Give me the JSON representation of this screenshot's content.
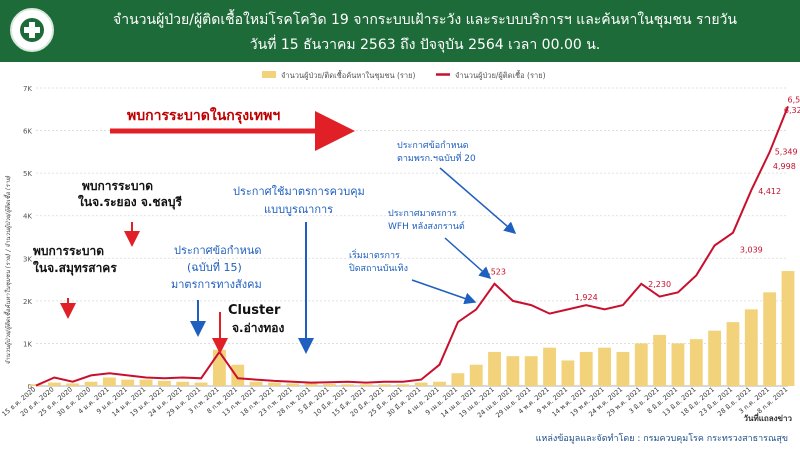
{
  "header": {
    "title_line1": "จำนวนผู้ป่วย/ผู้ติดเชื้อใหม่โรคโควิด 19 จากระบบเฝ้าระวัง และระบบบริการฯ และค้นหาในชุมชน รายวัน",
    "title_line2": "วันที่ 15 ธันวาคม 2563 ถึง ปัจจุบัน 2564 เวลา 00.00 น."
  },
  "footer": {
    "source": "แหล่งข้อมูลและจัดทำโดย : กรมควบคุมโรค กระทรวงสาธารณสุข"
  },
  "chart_data": {
    "type": "bar",
    "ylabel": "จำนวนผู้ป่วย/ผู้ติดเชื้อค้นหาในชุมชน (ราย) / จำนวนผู้ป่วย/ผู้ติดเชื้อ (ราย)",
    "xlabel": "วันที่แถลงข่าว",
    "ylim": [
      0,
      7000
    ],
    "yticks": [
      "0",
      "1K",
      "2K",
      "3K",
      "4K",
      "5K",
      "6K",
      "7K"
    ],
    "legend_position": "top-right",
    "colors": {
      "bar": "#f2d27a",
      "line": "#c8102e",
      "annotation_blue": "#1f5fbf",
      "annotation_black": "#111111",
      "arrow_red": "#e01f26"
    },
    "x_tick_labels": [
      "15 ธ.ค. 2020",
      "20 ธ.ค. 2020",
      "25 ธ.ค. 2020",
      "30 ธ.ค. 2020",
      "4 ม.ค. 2021",
      "9 ม.ค. 2021",
      "14 ม.ค. 2021",
      "19 ม.ค. 2021",
      "24 ม.ค. 2021",
      "29 ม.ค. 2021",
      "3 ก.พ. 2021",
      "8 ก.พ. 2021",
      "13 ก.พ. 2021",
      "18 ก.พ. 2021",
      "23 ก.พ. 2021",
      "28 ก.พ. 2021",
      "5 มี.ค. 2021",
      "10 มี.ค. 2021",
      "15 มี.ค. 2021",
      "20 มี.ค. 2021",
      "25 มี.ค. 2021",
      "30 มี.ค. 2021",
      "4 เม.ย. 2021",
      "9 เม.ย. 2021",
      "14 เม.ย. 2021",
      "19 เม.ย. 2021",
      "24 เม.ย. 2021",
      "29 เม.ย. 2021",
      "4 พ.ค. 2021",
      "9 พ.ค. 2021",
      "14 พ.ค. 2021",
      "19 พ.ค. 2021",
      "24 พ.ค. 2021",
      "29 พ.ค. 2021",
      "3 มิ.ย. 2021",
      "8 มิ.ย. 2021",
      "13 มิ.ย. 2021",
      "18 มิ.ย. 2021",
      "23 มิ.ย. 2021",
      "28 มิ.ย. 2021",
      "3 ก.ค. 2021",
      "8 ก.ค. 2021"
    ],
    "series": [
      {
        "name": "จำนวนผู้ป่วย/ติดเชื้อค้นหาในชุมชน (ราย)",
        "type": "bar",
        "step_days": 5,
        "values": [
          40,
          80,
          60,
          100,
          200,
          150,
          150,
          120,
          100,
          80,
          850,
          500,
          100,
          80,
          60,
          60,
          50,
          40,
          40,
          40,
          40,
          80,
          100,
          300,
          500,
          800,
          700,
          700,
          900,
          600,
          800,
          900,
          800,
          1000,
          1200,
          1000,
          1100,
          1300,
          1500,
          1800,
          2200,
          2700
        ]
      },
      {
        "name": "จำนวนผู้ป่วย/ผู้ติดเชื้อ (ราย)",
        "type": "line",
        "step_days": 5,
        "values": [
          10,
          200,
          100,
          250,
          300,
          250,
          200,
          180,
          200,
          180,
          800,
          180,
          150,
          120,
          100,
          80,
          90,
          100,
          80,
          100,
          100,
          150,
          500,
          1500,
          1800,
          2400,
          2000,
          1900,
          1700,
          1800,
          1900,
          1800,
          1900,
          2400,
          2100,
          2200,
          2600,
          3300,
          3600,
          4600,
          5500,
          6567
        ]
      }
    ],
    "value_labels": [
      {
        "text": "2,523",
        "x_index": 25,
        "value": 2523
      },
      {
        "text": "2,230",
        "x_index": 34,
        "value": 2230
      },
      {
        "text": "1,924",
        "x_index": 30,
        "value": 1924
      },
      {
        "text": "3,039",
        "x_index": 39,
        "value": 3039
      },
      {
        "text": "4,412",
        "x_index": 40,
        "value": 4412
      },
      {
        "text": "4,998",
        "x_index": 40.8,
        "value": 4998
      },
      {
        "text": "5,349",
        "x_index": 40.9,
        "value": 5349
      },
      {
        "text": "6,324",
        "x_index": 41.4,
        "value": 6324
      },
      {
        "text": "6,567",
        "x_index": 41.6,
        "value": 6567
      }
    ],
    "annotations": {
      "bkk": "พบการระบาดในกรุงเทพฯ",
      "rayong_line1": "พบการระบาด",
      "rayong_line2": "ในจ.ระยอง จ.ชลบุรี",
      "samut_line1": "พบการระบาด",
      "samut_line2": "ในจ.สมุทรสาคร",
      "order15_line1": "ประกาศข้อกำหนด",
      "order15_line2": "(ฉบับที่ 15)",
      "order15_line3": "มาตรการทางสังคม",
      "cluster_line1": "Cluster",
      "cluster_line2": "จ.อ่างทอง",
      "integrated_line1": "ประกาศใช้มาตรการควบคุม",
      "integrated_line2": "แบบบูรณาการ",
      "order20_line1": "ประกาศข้อกำหนด",
      "order20_line2": "ตามพรก.ฯฉบับที่ 20",
      "wfh_line1": "ประกาศมาตรการ",
      "wfh_line2": "WFH หลังสงกรานต์",
      "ent_line1": "เริ่มมาตรการ",
      "ent_line2": "ปิดสถานบันเทิง"
    }
  }
}
